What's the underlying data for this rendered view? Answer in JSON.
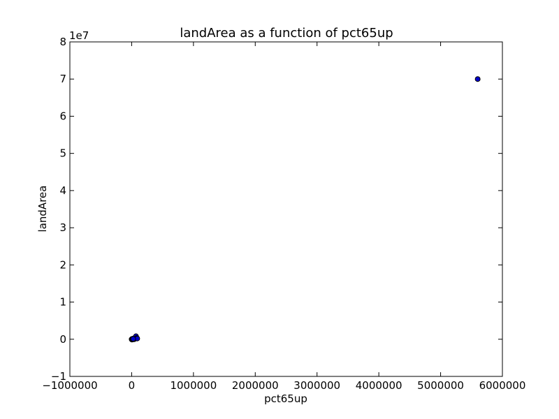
{
  "chart_data": {
    "type": "scatter",
    "title": "landArea as a function of pct65up",
    "xlabel": "pct65up",
    "ylabel": "landArea",
    "y_multiplier_label": "1e7",
    "xlim": [
      -1000000,
      6000000
    ],
    "ylim": [
      -1,
      8
    ],
    "y_scale_factor": 10000000,
    "xticks": [
      -1000000,
      0,
      1000000,
      2000000,
      3000000,
      4000000,
      5000000,
      6000000
    ],
    "xtick_labels": [
      "−1000000",
      "0",
      "1000000",
      "2000000",
      "3000000",
      "4000000",
      "5000000",
      "6000000"
    ],
    "yticks": [
      -1,
      0,
      1,
      2,
      3,
      4,
      5,
      6,
      7,
      8
    ],
    "ytick_labels": [
      "−1",
      "0",
      "1",
      "2",
      "3",
      "4",
      "5",
      "6",
      "7",
      "8"
    ],
    "grid": false,
    "marker_color": "#0000cc",
    "series": [
      {
        "x": [
          5600000,
          0,
          10000,
          20000,
          30000,
          40000,
          50000,
          60000,
          70000,
          80000,
          90000,
          5000,
          15000,
          25000
        ],
        "y": [
          7.0,
          0.0,
          0.01,
          0.0,
          0.02,
          0.0,
          0.03,
          0.05,
          0.08,
          0.03,
          0.02,
          -0.01,
          0.0,
          0.01
        ]
      }
    ]
  }
}
